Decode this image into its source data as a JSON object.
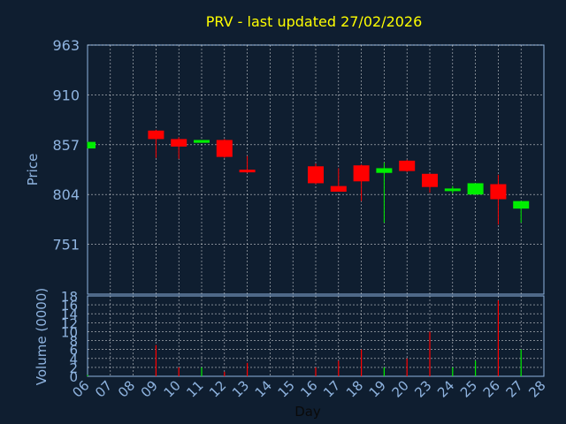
{
  "chart_data": {
    "type": "candlestick",
    "title": "PRV - last updated 27/02/2026",
    "xlabel": "Day",
    "x_ticks": [
      "06",
      "07",
      "08",
      "09",
      "10",
      "11",
      "12",
      "13",
      "14",
      "15",
      "16",
      "17",
      "18",
      "19",
      "20",
      "23",
      "24",
      "25",
      "26",
      "27",
      "28"
    ],
    "price": {
      "ylabel": "Price",
      "ylim": [
        698,
        963
      ],
      "yticks": [
        751,
        804,
        857,
        910,
        963
      ],
      "grid": true,
      "candles": [
        {
          "day": "06",
          "open": 853,
          "high": 860,
          "low": 853,
          "close": 860
        },
        {
          "day": "09",
          "open": 872,
          "high": 873,
          "low": 843,
          "close": 863
        },
        {
          "day": "10",
          "open": 863,
          "high": 865,
          "low": 842,
          "close": 855
        },
        {
          "day": "11",
          "open": 859,
          "high": 862,
          "low": 859,
          "close": 862
        },
        {
          "day": "12",
          "open": 862,
          "high": 863,
          "low": 843,
          "close": 844
        },
        {
          "day": "13",
          "open": 830,
          "high": 845,
          "low": 827,
          "close": 828
        },
        {
          "day": "16",
          "open": 834,
          "high": 837,
          "low": 815,
          "close": 816
        },
        {
          "day": "17",
          "open": 813,
          "high": 832,
          "low": 807,
          "close": 807
        },
        {
          "day": "18",
          "open": 835,
          "high": 836,
          "low": 797,
          "close": 818
        },
        {
          "day": "19",
          "open": 827,
          "high": 838,
          "low": 774,
          "close": 832
        },
        {
          "day": "20",
          "open": 840,
          "high": 841,
          "low": 828,
          "close": 829
        },
        {
          "day": "23",
          "open": 826,
          "high": 826,
          "low": 806,
          "close": 812
        },
        {
          "day": "24",
          "open": 808,
          "high": 813,
          "low": 805,
          "close": 810
        },
        {
          "day": "25",
          "open": 804,
          "high": 816,
          "low": 804,
          "close": 816
        },
        {
          "day": "26",
          "open": 815,
          "high": 825,
          "low": 772,
          "close": 799
        },
        {
          "day": "27",
          "open": 789,
          "high": 797,
          "low": 774,
          "close": 797
        }
      ]
    },
    "volume": {
      "ylabel": "Volume (0000)",
      "ylim": [
        0,
        18
      ],
      "yticks": [
        0,
        2,
        4,
        6,
        8,
        10,
        12,
        14,
        16,
        18
      ],
      "grid": true,
      "bars": [
        {
          "day": "06",
          "value": 0.3,
          "up": true
        },
        {
          "day": "09",
          "value": 7,
          "up": false
        },
        {
          "day": "10",
          "value": 2,
          "up": false
        },
        {
          "day": "11",
          "value": 2,
          "up": true
        },
        {
          "day": "12",
          "value": 1,
          "up": false
        },
        {
          "day": "13",
          "value": 3,
          "up": false
        },
        {
          "day": "16",
          "value": 2,
          "up": false
        },
        {
          "day": "17",
          "value": 3.5,
          "up": false
        },
        {
          "day": "18",
          "value": 6,
          "up": false
        },
        {
          "day": "19",
          "value": 2,
          "up": true
        },
        {
          "day": "20",
          "value": 4,
          "up": false
        },
        {
          "day": "23",
          "value": 10,
          "up": false
        },
        {
          "day": "24",
          "value": 2,
          "up": true
        },
        {
          "day": "25",
          "value": 3.5,
          "up": true
        },
        {
          "day": "26",
          "value": 17,
          "up": false
        },
        {
          "day": "27",
          "value": 6,
          "up": true
        }
      ]
    },
    "colors": {
      "background": "#0f1e30",
      "axis": "#8fb4e0",
      "grid": "#ffffff",
      "title": "#ffff00",
      "up": "#00ee00",
      "down": "#ff0000",
      "label": "#8fb4e0"
    }
  }
}
